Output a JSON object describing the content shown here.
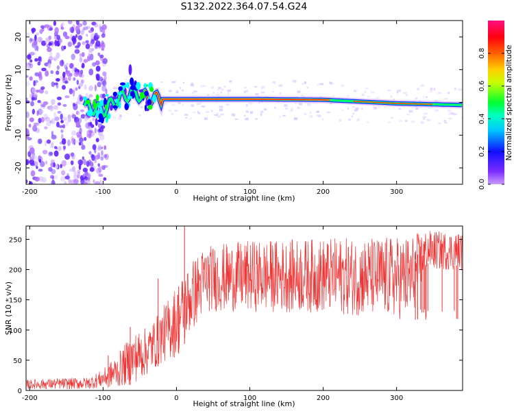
{
  "title": "S132.2022.364.07.54.G24",
  "chart_data": [
    {
      "type": "heatmap",
      "xlabel": "Height of straight line (km)",
      "ylabel": "Frequency (Hz)",
      "xlim": [
        -205,
        390
      ],
      "ylim": [
        -25,
        25
      ],
      "x_ticks": [
        -200,
        -100,
        0,
        100,
        200,
        300
      ],
      "y_ticks": [
        -20,
        -10,
        0,
        10,
        20
      ],
      "colorbar": {
        "label": "Normalized spectral amplitude",
        "range": [
          0.0,
          1.0
        ],
        "ticks": [
          0.0,
          0.2,
          0.4,
          0.6,
          0.8
        ],
        "colormap": "rainbow",
        "colors": [
          "#b070ff",
          "#6020ff",
          "#0000ff",
          "#00ffff",
          "#00ff00",
          "#ffff00",
          "#ff8000",
          "#ff0000",
          "#ff00a0"
        ]
      },
      "signal_band": {
        "x_start": -125,
        "x_end": 390,
        "center_freq": [
          {
            "x": -120,
            "f": -1.5
          },
          {
            "x": -100,
            "f": -2.5
          },
          {
            "x": -80,
            "f": 1.0
          },
          {
            "x": -60,
            "f": 3.0
          },
          {
            "x": -40,
            "f": 1.5
          },
          {
            "x": -20,
            "f": 1.0
          },
          {
            "x": 100,
            "f": 1.0
          },
          {
            "x": 200,
            "f": 0.8
          },
          {
            "x": 300,
            "f": -0.3
          },
          {
            "x": 390,
            "f": -0.8
          }
        ]
      },
      "noise_region": {
        "x_start": -205,
        "x_end": -100
      }
    },
    {
      "type": "line",
      "color": "#ee3333",
      "xlabel": "Height of straight line (km)",
      "ylabel": "SNR (10 * v/v)",
      "xlim": [
        -205,
        390
      ],
      "ylim": [
        0,
        272
      ],
      "x_ticks": [
        -200,
        -100,
        0,
        100,
        200,
        300
      ],
      "y_ticks": [
        0,
        50,
        100,
        150,
        200,
        250
      ],
      "envelope": [
        {
          "x": -205,
          "low": 2,
          "high": 18
        },
        {
          "x": -120,
          "low": 2,
          "high": 22
        },
        {
          "x": -100,
          "low": 5,
          "high": 35
        },
        {
          "x": -80,
          "low": 5,
          "high": 60
        },
        {
          "x": -60,
          "low": 10,
          "high": 95
        },
        {
          "x": -40,
          "low": 25,
          "high": 105
        },
        {
          "x": -20,
          "low": 45,
          "high": 135
        },
        {
          "x": 0,
          "low": 55,
          "high": 175
        },
        {
          "x": 20,
          "low": 95,
          "high": 215
        },
        {
          "x": 40,
          "low": 130,
          "high": 240
        },
        {
          "x": 100,
          "low": 130,
          "high": 248
        },
        {
          "x": 200,
          "low": 128,
          "high": 252
        },
        {
          "x": 300,
          "low": 118,
          "high": 255
        },
        {
          "x": 320,
          "low": 115,
          "high": 258
        },
        {
          "x": 340,
          "low": 200,
          "high": 265
        },
        {
          "x": 390,
          "low": 198,
          "high": 262
        }
      ],
      "spikes": [
        {
          "x": 11,
          "y": 272
        },
        {
          "x": -25,
          "y": 185
        },
        {
          "x": -63,
          "y": 105
        },
        {
          "x": -93,
          "y": 58
        },
        {
          "x": 3,
          "y": 172
        }
      ]
    }
  ]
}
